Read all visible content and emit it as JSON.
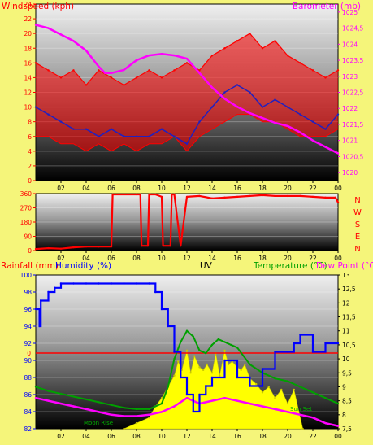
{
  "colors": {
    "background": "#f5f57a",
    "windspeed": "#ff0000",
    "gust_avg": "#2020c0",
    "barometer": "#ff00ff",
    "wind_dir": "#ff0000",
    "humidity": "#0000ff",
    "temperature": "#00a000",
    "dew_point": "#ff00ff",
    "uv": "#ffff00",
    "rainfall": "#ff0000",
    "uv_label": "#000000"
  },
  "chart_data": [
    {
      "type": "line",
      "panel": "wind-barometer",
      "left_axis_label": "Windspeed (kph)",
      "right_axis_label": "Barometer (mb)",
      "header_overlay": "",
      "x_ticks": [
        "02",
        "04",
        "06",
        "08",
        "10",
        "12",
        "14",
        "16",
        "18",
        "20",
        "22",
        "00"
      ],
      "xlim": [
        0,
        24
      ],
      "y_left_ticks": [
        "0",
        "2",
        "4",
        "6",
        "8",
        "10",
        "12",
        "14",
        "16",
        "18",
        "20",
        "22",
        "24"
      ],
      "ylim_left": [
        0,
        24
      ],
      "y_right_ticks": [
        "1020",
        "1020,5",
        "1021",
        "1021,5",
        "1022",
        "1022,5",
        "1023",
        "1023,5",
        "1024",
        "1024,5",
        "1025"
      ],
      "ylim_right": [
        1019.75,
        1025.25
      ],
      "series": [
        {
          "key": "gust",
          "axis": "left",
          "color": "windspeed",
          "x": [
            0,
            1,
            2,
            3,
            4,
            5,
            6,
            7,
            8,
            9,
            10,
            11,
            12,
            13,
            14,
            15,
            16,
            17,
            18,
            19,
            20,
            21,
            22,
            23,
            24
          ],
          "y": [
            16,
            15,
            14,
            15,
            13,
            15,
            14,
            13,
            14,
            15,
            14,
            15,
            16,
            15,
            17,
            18,
            19,
            20,
            18,
            19,
            17,
            16,
            15,
            14,
            15
          ],
          "low": [
            6,
            6,
            5,
            5,
            4,
            5,
            4,
            5,
            4,
            5,
            5,
            6,
            4,
            6,
            7,
            8,
            9,
            9,
            8,
            8,
            7,
            6,
            6,
            6,
            7
          ]
        },
        {
          "key": "average",
          "axis": "left",
          "color": "gust_avg",
          "x": [
            0,
            1,
            2,
            3,
            4,
            5,
            6,
            7,
            8,
            9,
            10,
            11,
            12,
            13,
            14,
            15,
            16,
            17,
            18,
            19,
            20,
            21,
            22,
            23,
            24
          ],
          "y": [
            10,
            9,
            8,
            7,
            7,
            6,
            7,
            6,
            6,
            6,
            7,
            6,
            5,
            8,
            10,
            12,
            13,
            12,
            10,
            11,
            10,
            9,
            8,
            7,
            9
          ]
        },
        {
          "key": "barometer",
          "axis": "right",
          "color": "barometer",
          "x": [
            0,
            1,
            2,
            3,
            4,
            5,
            5.5,
            6,
            7,
            8,
            9,
            10,
            11,
            12,
            13,
            14,
            15,
            16,
            17,
            18,
            19,
            20,
            21,
            22,
            23,
            24
          ],
          "y": [
            1024.6,
            1024.5,
            1024.3,
            1024.1,
            1023.8,
            1023.3,
            1023.1,
            1023.1,
            1023.2,
            1023.5,
            1023.65,
            1023.7,
            1023.65,
            1023.55,
            1023.1,
            1022.65,
            1022.3,
            1022.05,
            1021.85,
            1021.7,
            1021.55,
            1021.45,
            1021.25,
            1021.0,
            1020.8,
            1020.6
          ]
        }
      ]
    },
    {
      "type": "line",
      "panel": "wind-direction",
      "x_ticks": [
        "02",
        "04",
        "06",
        "08",
        "10",
        "12",
        "14",
        "16",
        "18",
        "20",
        "22",
        "00"
      ],
      "xlim": [
        0,
        24
      ],
      "y_ticks": [
        "0",
        "90",
        "180",
        "270",
        "360"
      ],
      "ylim": [
        0,
        360
      ],
      "compass_labels": [
        "N",
        "W",
        "S",
        "E",
        "N"
      ],
      "series": [
        {
          "key": "direction",
          "color": "wind_dir",
          "x": [
            0,
            1,
            2,
            3,
            4,
            5,
            6,
            6.1,
            7,
            8,
            8.3,
            8.4,
            8.9,
            9,
            9.1,
            9.5,
            10,
            10.1,
            10.7,
            10.8,
            11,
            11.5,
            12,
            13,
            14,
            15,
            16,
            17,
            18,
            19,
            20,
            21,
            22,
            23,
            23.8,
            24
          ],
          "y": [
            10,
            15,
            12,
            20,
            25,
            25,
            25,
            355,
            355,
            355,
            355,
            30,
            30,
            355,
            355,
            355,
            340,
            30,
            30,
            355,
            355,
            30,
            340,
            345,
            330,
            335,
            340,
            345,
            350,
            345,
            345,
            345,
            340,
            335,
            335,
            305
          ]
        }
      ]
    },
    {
      "type": "line",
      "panel": "rain-humidity-uv-temperature",
      "labels": {
        "rainfall": "Rainfall (mm)",
        "humidity": "Humidity (%)",
        "uv": "UV",
        "temperature": "Temperature (°C)",
        "dew_point": "Dew Point (°C)"
      },
      "x_ticks": [
        "02",
        "04",
        "06",
        "08",
        "10",
        "12",
        "14",
        "16",
        "18",
        "20",
        "22",
        "00"
      ],
      "xlim": [
        0,
        24
      ],
      "rainfall_tick": "0",
      "rainfall_value": 0,
      "y_left_ticks": [
        "82",
        "84",
        "86",
        "88",
        "90",
        "92",
        "94",
        "96",
        "98",
        "100"
      ],
      "ylim_left": [
        82,
        100
      ],
      "y_right_ticks": [
        "7,5",
        "8",
        "8,5",
        "9",
        "9,5",
        "10",
        "10,5",
        "11",
        "11,5",
        "12",
        "12,5",
        "13"
      ],
      "ylim_right": [
        7.5,
        13
      ],
      "annotations": [
        "Moon Rise",
        "Moon Set",
        "Sun Set"
      ],
      "series": [
        {
          "key": "humidity",
          "axis": "left",
          "color": "humidity",
          "x": [
            0,
            0.3,
            0.4,
            1,
            1.5,
            2,
            3,
            4,
            5,
            6,
            7,
            8,
            9,
            9.5,
            10,
            10.5,
            11,
            11.5,
            12,
            12.5,
            13,
            13.5,
            14,
            15,
            16,
            17,
            18,
            19,
            20,
            20.5,
            21,
            22,
            23,
            24
          ],
          "y": [
            96,
            94,
            97,
            98,
            98.5,
            99,
            99,
            99,
            99,
            99,
            99,
            99,
            99,
            98,
            96,
            94,
            91,
            88,
            86,
            84,
            86,
            87,
            88,
            90,
            88,
            87,
            89,
            91,
            91,
            92,
            93,
            91,
            92,
            92
          ]
        },
        {
          "key": "temperature",
          "axis": "right",
          "color": "temperature",
          "x": [
            0,
            1,
            2,
            3,
            4,
            5,
            6,
            7,
            8,
            9,
            10,
            10.5,
            11,
            11.5,
            12,
            12.5,
            13,
            13.5,
            14,
            14.5,
            15,
            15.5,
            16,
            17,
            18,
            19,
            20,
            21,
            22,
            23,
            24
          ],
          "y": [
            9.0,
            8.85,
            8.75,
            8.65,
            8.55,
            8.45,
            8.35,
            8.25,
            8.2,
            8.2,
            8.4,
            9.0,
            10.0,
            10.6,
            11.0,
            10.8,
            10.3,
            10.2,
            10.5,
            10.7,
            10.6,
            10.5,
            10.4,
            9.8,
            9.5,
            9.3,
            9.2,
            9.0,
            8.8,
            8.6,
            8.4
          ]
        },
        {
          "key": "dew_point",
          "axis": "right",
          "color": "dew_point",
          "x": [
            0,
            1,
            2,
            3,
            4,
            5,
            6,
            7,
            8,
            9,
            10,
            11,
            12,
            13,
            14,
            15,
            16,
            17,
            18,
            19,
            20,
            21,
            22,
            23,
            24
          ],
          "y": [
            8.6,
            8.5,
            8.4,
            8.3,
            8.2,
            8.1,
            8.0,
            7.95,
            7.95,
            8.0,
            8.1,
            8.3,
            8.6,
            8.4,
            8.5,
            8.6,
            8.5,
            8.4,
            8.3,
            8.2,
            8.1,
            8.0,
            7.9,
            7.7,
            7.6
          ]
        },
        {
          "key": "uv",
          "axis": "right",
          "color": "uv",
          "x": [
            7.0,
            8,
            9,
            9.5,
            10,
            10.5,
            11,
            11.3,
            11.6,
            12,
            12.3,
            12.6,
            13,
            13.3,
            13.6,
            14,
            14.3,
            14.6,
            15,
            15.3,
            15.6,
            16,
            16.3,
            16.6,
            17,
            17.5,
            18,
            18.5,
            19,
            19.5,
            20,
            20.5,
            21.2
          ],
          "y": [
            7.5,
            7.7,
            7.9,
            8.3,
            8.6,
            9.0,
            9.4,
            9.9,
            9.6,
            10.3,
            9.5,
            10.1,
            9.7,
            9.6,
            9.8,
            9.5,
            10.2,
            9.4,
            10.3,
            9.8,
            9.9,
            9.7,
            9.6,
            9.8,
            9.3,
            9.1,
            8.8,
            9.0,
            8.6,
            8.9,
            8.4,
            8.9,
            7.5
          ]
        }
      ]
    }
  ]
}
